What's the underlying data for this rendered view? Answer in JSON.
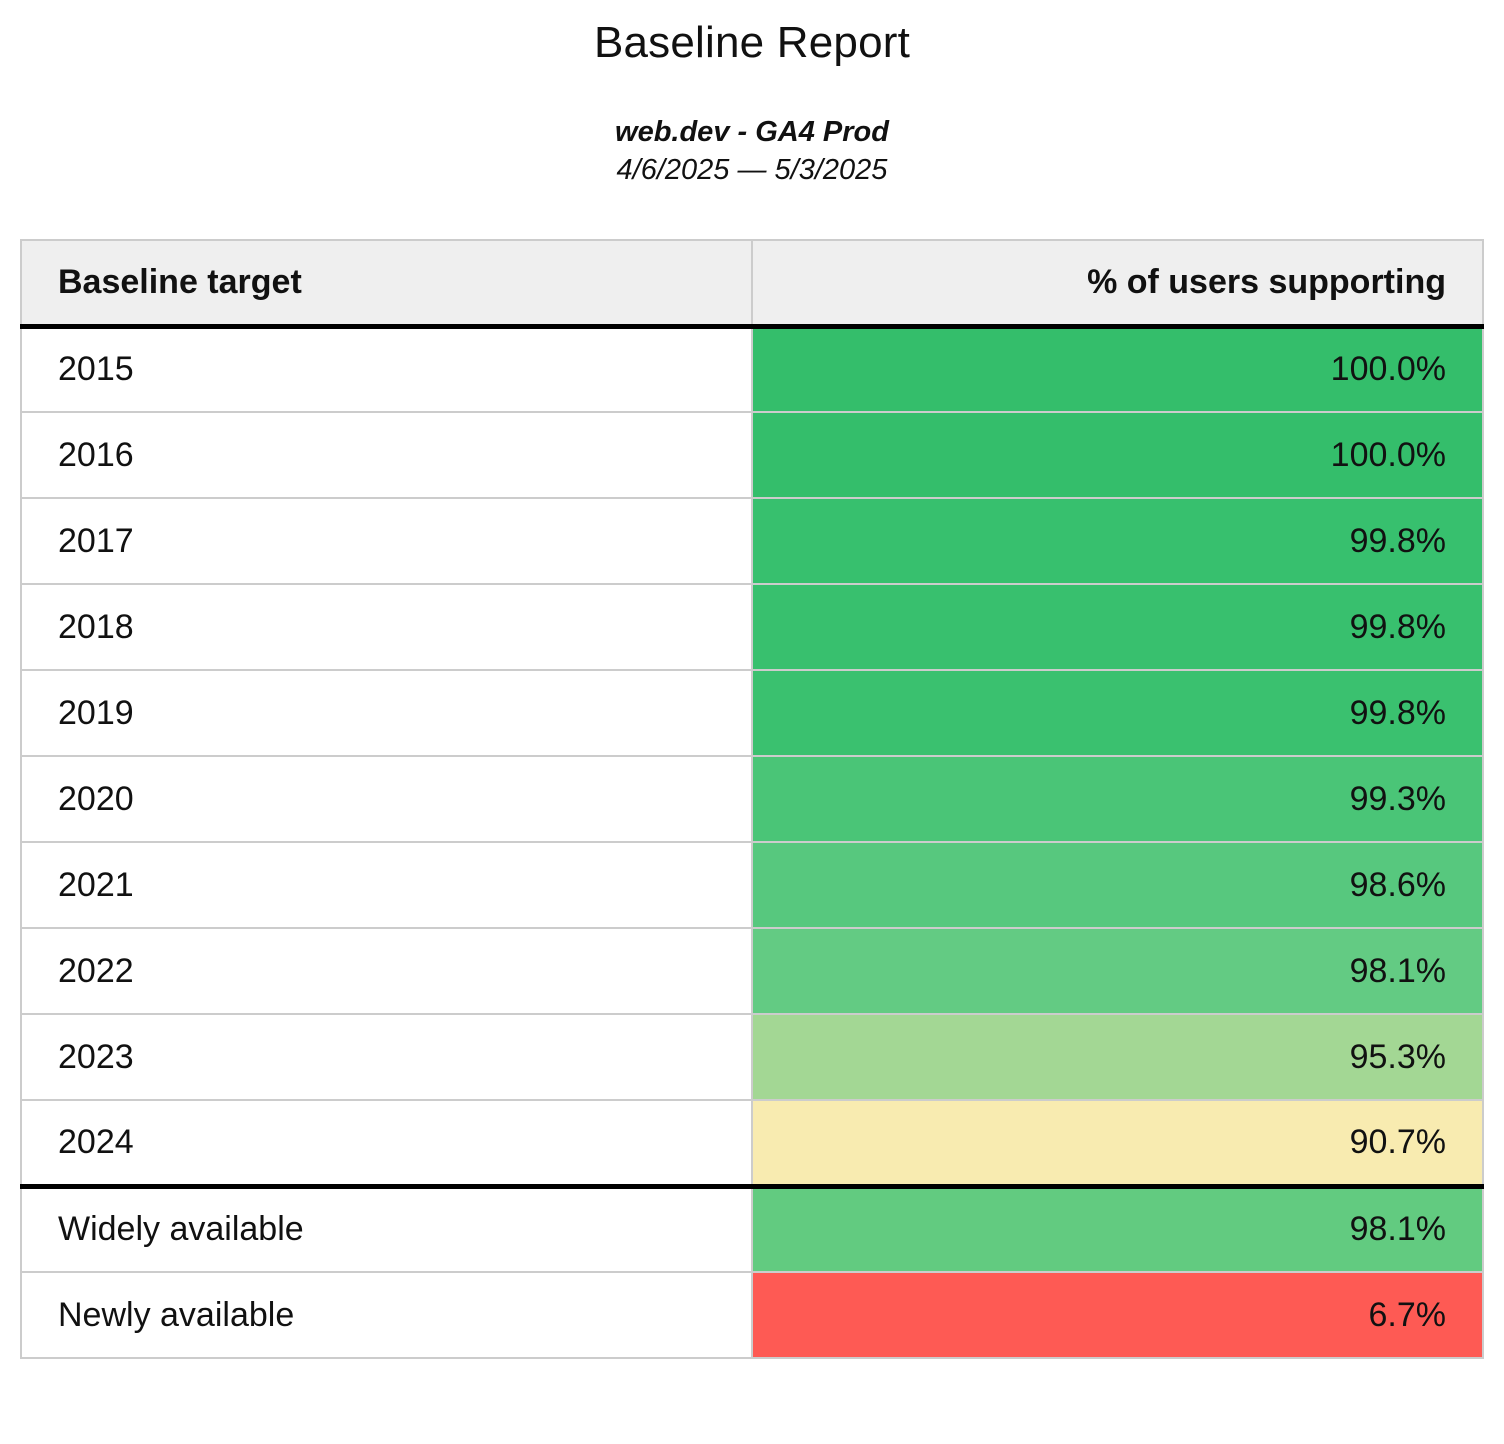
{
  "title": "Baseline Report",
  "subtitle": "web.dev - GA4 Prod",
  "date_range": "4/6/2025 — 5/3/2025",
  "table": {
    "columns": [
      {
        "label": "Baseline target",
        "align": "left"
      },
      {
        "label": "% of users supporting",
        "align": "right"
      }
    ],
    "rows": [
      {
        "target": "2015",
        "value": "100.0%",
        "color": "#34be6b",
        "divider_above": false
      },
      {
        "target": "2016",
        "value": "100.0%",
        "color": "#34be6b",
        "divider_above": false
      },
      {
        "target": "2017",
        "value": "99.8%",
        "color": "#37c06e",
        "divider_above": false
      },
      {
        "target": "2018",
        "value": "99.8%",
        "color": "#38c06e",
        "divider_above": false
      },
      {
        "target": "2019",
        "value": "99.8%",
        "color": "#3ac16f",
        "divider_above": false
      },
      {
        "target": "2020",
        "value": "99.3%",
        "color": "#4ac577",
        "divider_above": false
      },
      {
        "target": "2021",
        "value": "98.6%",
        "color": "#57c87e",
        "divider_above": false
      },
      {
        "target": "2022",
        "value": "98.1%",
        "color": "#63cb83",
        "divider_above": false
      },
      {
        "target": "2023",
        "value": "95.3%",
        "color": "#a3d794",
        "divider_above": false
      },
      {
        "target": "2024",
        "value": "90.7%",
        "color": "#f8ebb0",
        "divider_above": false
      },
      {
        "target": "Widely available",
        "value": "98.1%",
        "color": "#62cb80",
        "divider_above": true
      },
      {
        "target": "Newly available",
        "value": "6.7%",
        "color": "#fe5a54",
        "divider_above": false
      }
    ],
    "style_colors": {
      "header_background": "#efefef",
      "grid_line": "#cccccc",
      "section_divider": "#000000"
    }
  }
}
